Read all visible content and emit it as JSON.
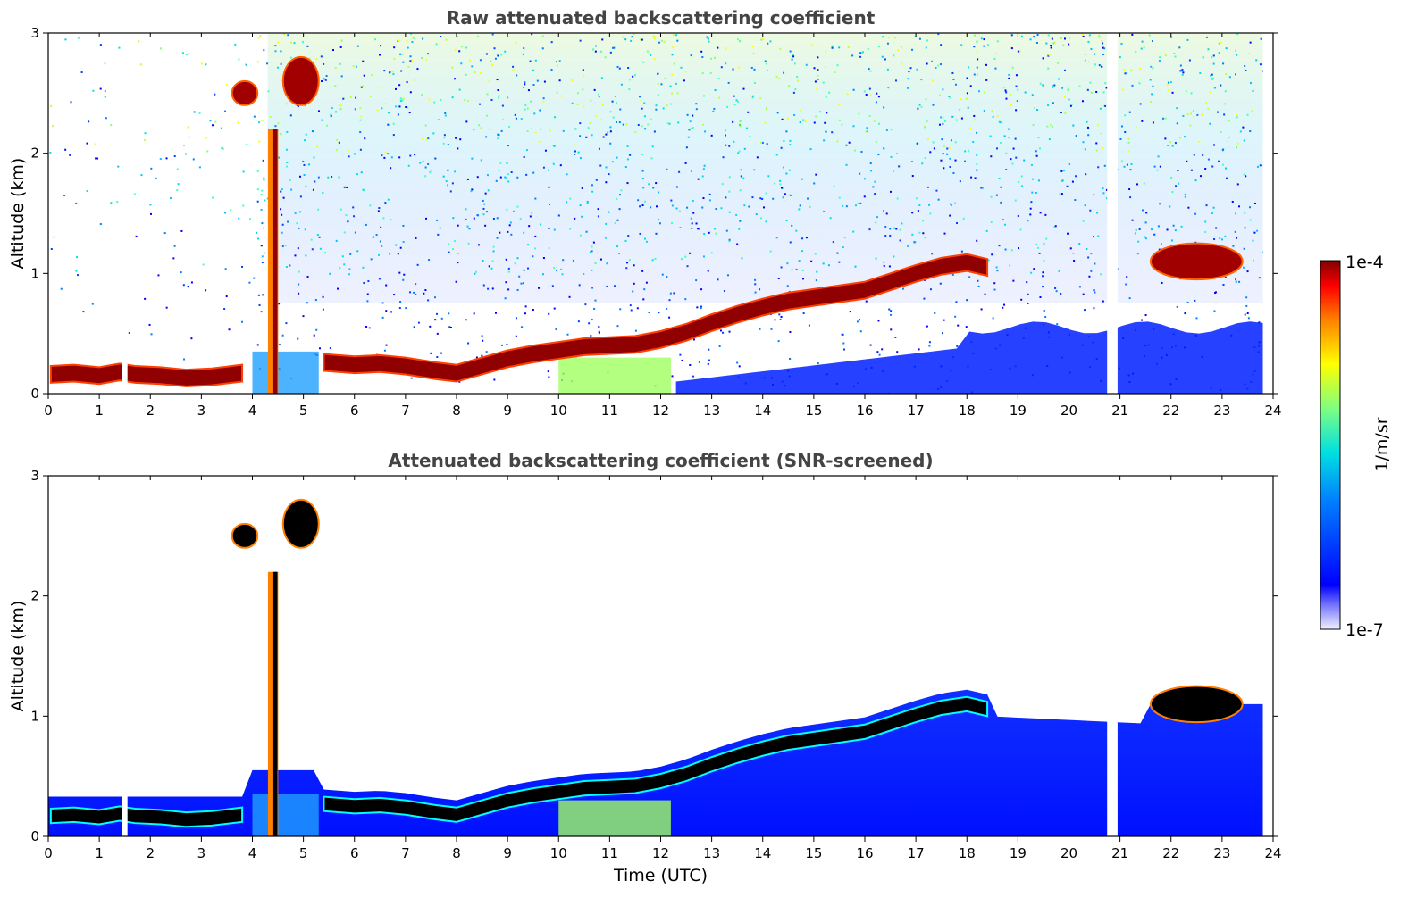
{
  "chart_data": [
    {
      "type": "heatmap",
      "title": "Raw attenuated backscattering coefficient",
      "xlabel": "",
      "ylabel": "Altitude (km)",
      "xlim": [
        0,
        24
      ],
      "ylim": [
        0,
        3
      ],
      "xticks": [
        "0",
        "1",
        "2",
        "3",
        "4",
        "5",
        "6",
        "7",
        "8",
        "9",
        "10",
        "11",
        "12",
        "13",
        "14",
        "15",
        "16",
        "17",
        "18",
        "19",
        "20",
        "21",
        "22",
        "23",
        "24"
      ],
      "yticks": [
        "0",
        "1",
        "2",
        "3"
      ],
      "layer_top_km": [
        [
          0.05,
          0.23
        ],
        [
          0.5,
          0.24
        ],
        [
          1.0,
          0.22
        ],
        [
          1.4,
          0.25
        ],
        [
          1.7,
          0.23
        ],
        [
          2.2,
          0.22
        ],
        [
          2.7,
          0.2
        ],
        [
          3.2,
          0.21
        ],
        [
          3.8,
          0.24
        ],
        [
          5.4,
          0.33
        ],
        [
          6.0,
          0.31
        ],
        [
          6.5,
          0.32
        ],
        [
          7.0,
          0.3
        ],
        [
          7.6,
          0.26
        ],
        [
          8.0,
          0.24
        ],
        [
          8.5,
          0.3
        ],
        [
          9.0,
          0.36
        ],
        [
          9.5,
          0.4
        ],
        [
          10.0,
          0.43
        ],
        [
          10.5,
          0.46
        ],
        [
          11.0,
          0.47
        ],
        [
          11.5,
          0.48
        ],
        [
          12.0,
          0.52
        ],
        [
          12.5,
          0.58
        ],
        [
          13.0,
          0.66
        ],
        [
          13.5,
          0.73
        ],
        [
          14.0,
          0.79
        ],
        [
          14.5,
          0.84
        ],
        [
          15.0,
          0.87
        ],
        [
          15.5,
          0.9
        ],
        [
          16.0,
          0.93
        ],
        [
          16.5,
          1.0
        ],
        [
          17.0,
          1.07
        ],
        [
          17.5,
          1.13
        ],
        [
          18.0,
          1.16
        ],
        [
          18.4,
          1.12
        ]
      ],
      "clouds": [
        {
          "x": [
            4.2,
            4.6
          ],
          "y": [
            0.0,
            2.2
          ],
          "note": ""
        },
        {
          "x": [
            4.6,
            5.3
          ],
          "y": [
            2.4,
            2.8
          ],
          "note": ""
        },
        {
          "x": [
            3.6,
            4.1
          ],
          "y": [
            2.4,
            2.6
          ],
          "note": ""
        },
        {
          "x": [
            21.6,
            23.4
          ],
          "y": [
            0.95,
            1.25
          ],
          "note": ""
        }
      ],
      "gaps_utc": [
        1.5,
        20.8,
        20.9
      ],
      "colormap": "jet",
      "colorbar": {
        "min_label": "1e-7",
        "max_label": "1e-4",
        "label": "1/m/sr"
      }
    },
    {
      "type": "heatmap",
      "title": "Attenuated backscattering coefficient (SNR-screened)",
      "xlabel": "Time (UTC)",
      "ylabel": "Altitude (km)",
      "xlim": [
        0,
        24
      ],
      "ylim": [
        0,
        3
      ],
      "xticks": [
        "0",
        "1",
        "2",
        "3",
        "4",
        "5",
        "6",
        "7",
        "8",
        "9",
        "10",
        "11",
        "12",
        "13",
        "14",
        "15",
        "16",
        "17",
        "18",
        "19",
        "20",
        "21",
        "22",
        "23",
        "24"
      ],
      "yticks": [
        "0",
        "1",
        "2",
        "3"
      ],
      "colormap": "jet",
      "screened_color": "#ffffff",
      "saturated_color": "#000000"
    }
  ],
  "colors": {
    "low": "#0000ff",
    "mid": "#00cccc",
    "high": "#800000",
    "title": "#444444"
  }
}
